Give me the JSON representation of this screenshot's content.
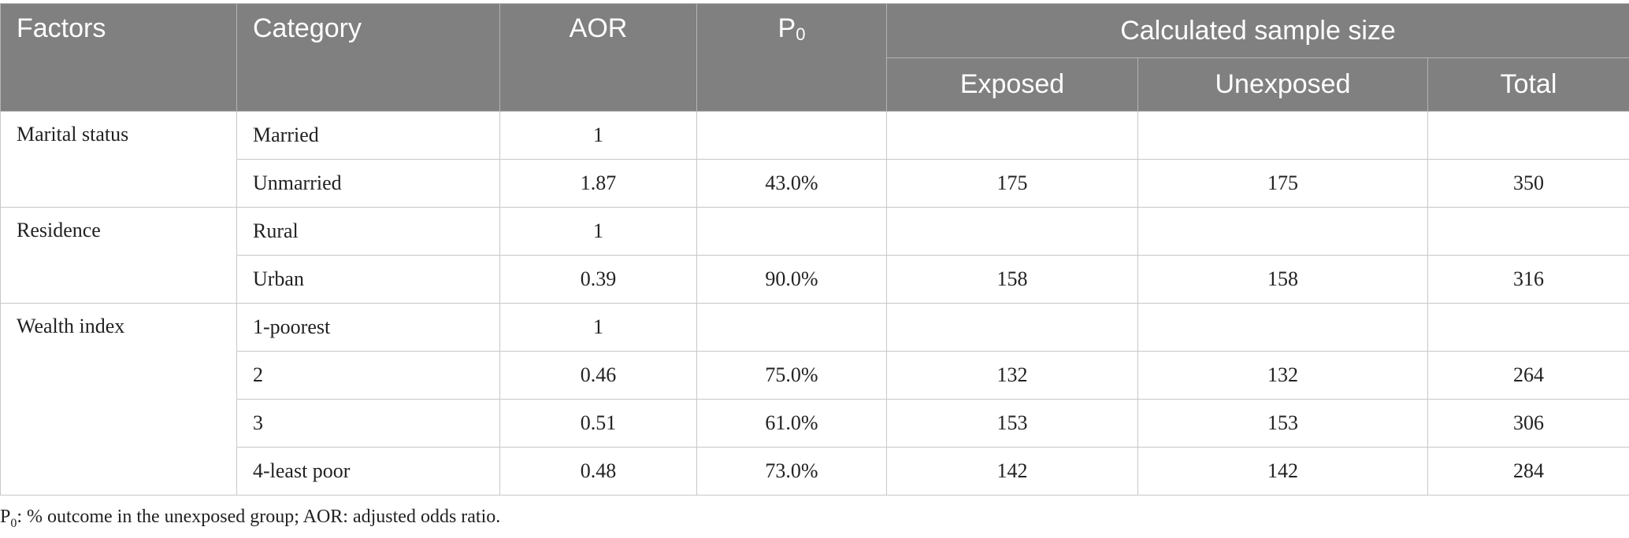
{
  "header": {
    "factors": "Factors",
    "category": "Category",
    "aor": "AOR",
    "p0_main": "P",
    "p0_sub": "0",
    "calc": "Calculated sample size",
    "exposed": "Exposed",
    "unexposed": "Unexposed",
    "total": "Total"
  },
  "groups": [
    {
      "factor": "Marital status",
      "rows": [
        {
          "category": "Married",
          "aor": "1",
          "p0": "",
          "exposed": "",
          "unexposed": "",
          "total": ""
        },
        {
          "category": "Unmarried",
          "aor": "1.87",
          "p0": "43.0%",
          "exposed": "175",
          "unexposed": "175",
          "total": "350"
        }
      ]
    },
    {
      "factor": "Residence",
      "rows": [
        {
          "category": "Rural",
          "aor": "1",
          "p0": "",
          "exposed": "",
          "unexposed": "",
          "total": ""
        },
        {
          "category": "Urban",
          "aor": "0.39",
          "p0": "90.0%",
          "exposed": "158",
          "unexposed": "158",
          "total": "316"
        }
      ]
    },
    {
      "factor": "Wealth index",
      "rows": [
        {
          "category": "1-poorest",
          "aor": "1",
          "p0": "",
          "exposed": "",
          "unexposed": "",
          "total": ""
        },
        {
          "category": "2",
          "aor": "0.46",
          "p0": "75.0%",
          "exposed": "132",
          "unexposed": "132",
          "total": "264"
        },
        {
          "category": "3",
          "aor": "0.51",
          "p0": "61.0%",
          "exposed": "153",
          "unexposed": "153",
          "total": "306"
        },
        {
          "category": "4-least poor",
          "aor": "0.48",
          "p0": "73.0%",
          "exposed": "142",
          "unexposed": "142",
          "total": "284"
        }
      ]
    }
  ],
  "footnote": {
    "p_main": "P",
    "p_sub": "0",
    "text": ": % outcome in the unexposed group; AOR: adjusted odds ratio."
  }
}
